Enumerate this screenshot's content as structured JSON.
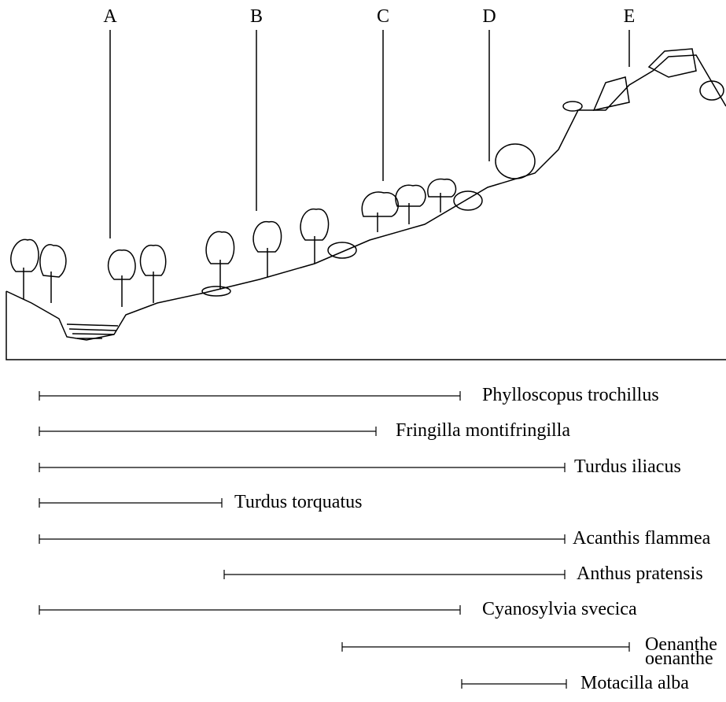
{
  "zones": [
    "A",
    "B",
    "C",
    "D",
    "E"
  ],
  "species": [
    "Phylloscopus trochillus",
    "Fringilla montifringilla",
    "Turdus iliacus",
    "Turdus torquatus",
    "Acanthis flammea",
    "Anthus pratensis",
    "Cyanosylvia svecica",
    "Oenanthe oenanthe",
    "Motacilla alba"
  ]
}
